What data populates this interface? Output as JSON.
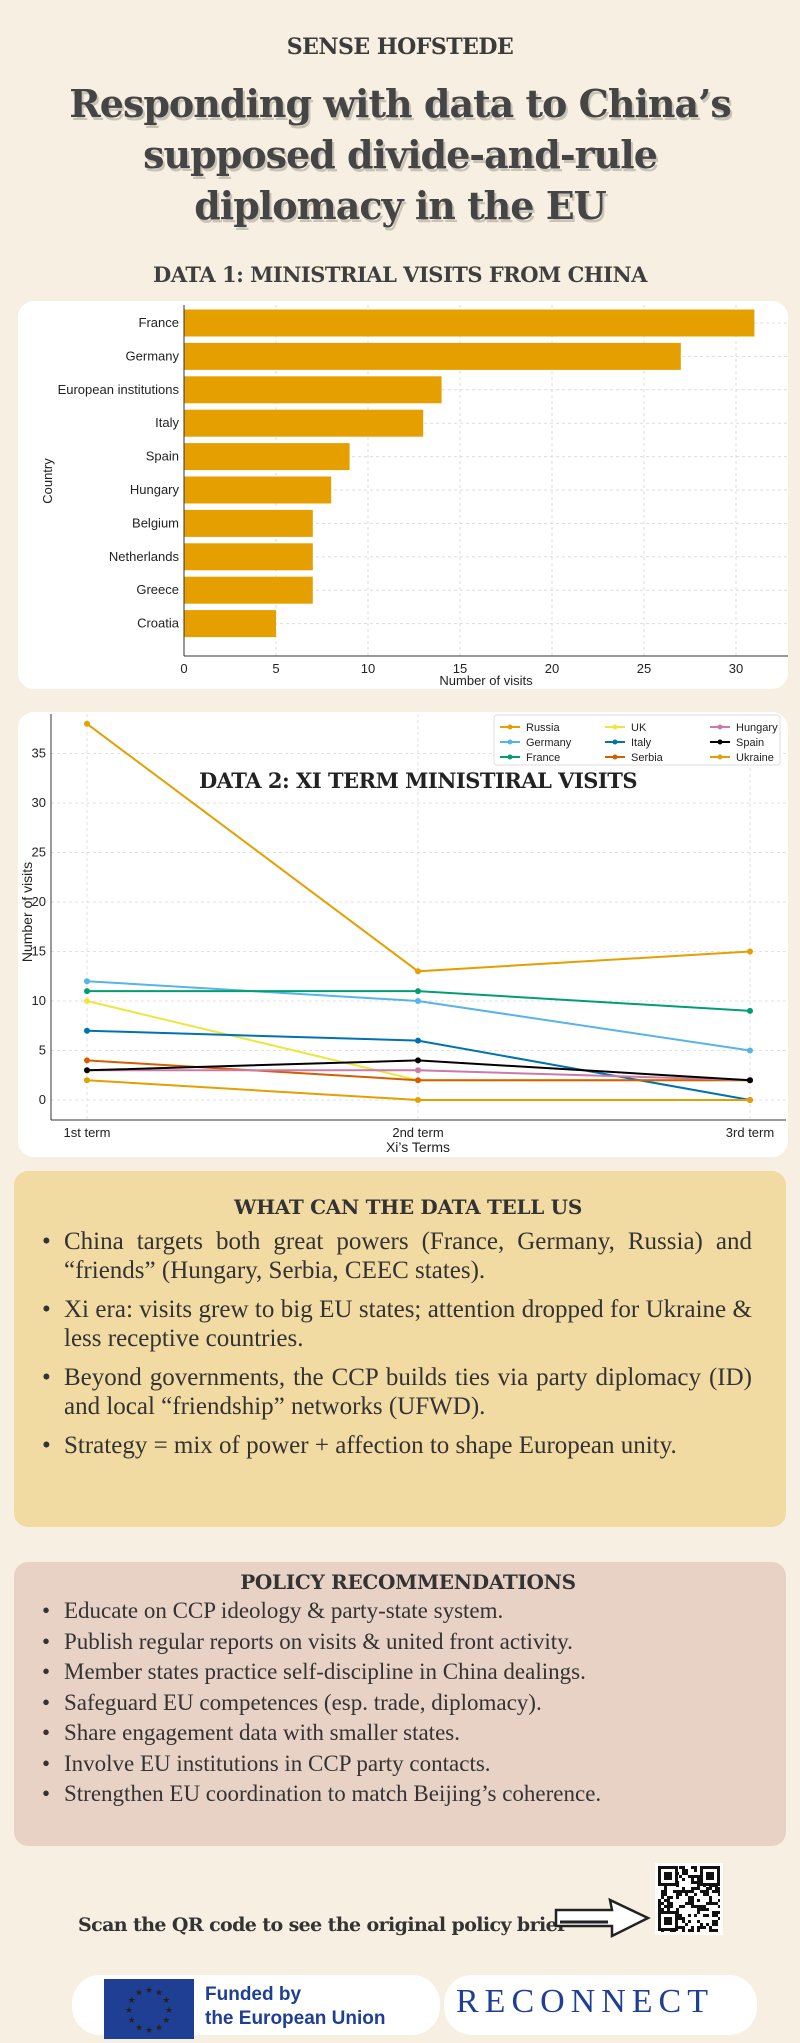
{
  "header": {
    "org": "SENSE HOFSTEDE",
    "title": "Responding with data to China’s supposed divide-and-rule diplomacy in the EU",
    "data1_heading": "DATA 1: MINISTRIAL VISITS FROM CHINA"
  },
  "chart_data": [
    {
      "type": "bar",
      "orientation": "horizontal",
      "title": "DATA 1: MINISTRIAL VISITS FROM CHINA",
      "categories": [
        "France",
        "Germany",
        "European institutions",
        "Italy",
        "Spain",
        "Hungary",
        "Belgium",
        "Netherlands",
        "Greece",
        "Croatia"
      ],
      "values": [
        31,
        27,
        14,
        13,
        9,
        8,
        7,
        7,
        7,
        5
      ],
      "xlabel": "Number of visits",
      "ylabel": "Country",
      "xticks": [
        0,
        5,
        10,
        15,
        20,
        25,
        30
      ],
      "xlim": [
        0,
        32.5
      ],
      "grid": true,
      "color": "#e5a000"
    },
    {
      "type": "line",
      "title": "DATA 2: XI TERM MINISTIRAL VISITS",
      "categories": [
        "1st term",
        "2nd term",
        "3rd term"
      ],
      "xlabel": "Xi’s Terms",
      "ylabel": "Number of visits",
      "yticks": [
        0,
        5,
        10,
        15,
        20,
        25,
        30,
        35
      ],
      "ylim": [
        -1.9,
        39.5
      ],
      "grid": true,
      "legend": "top-right",
      "series": [
        {
          "name": "Russia",
          "values": [
            38,
            13,
            15
          ],
          "color": "#e69f00"
        },
        {
          "name": "Germany",
          "values": [
            12,
            10,
            5
          ],
          "color": "#56b4e9"
        },
        {
          "name": "France",
          "values": [
            11,
            11,
            9
          ],
          "color": "#009e73"
        },
        {
          "name": "UK",
          "values": [
            10,
            2,
            2
          ],
          "color": "#f0e442"
        },
        {
          "name": "Italy",
          "values": [
            7,
            6,
            0
          ],
          "color": "#0072b2"
        },
        {
          "name": "Serbia",
          "values": [
            4,
            2,
            2
          ],
          "color": "#d55e00"
        },
        {
          "name": "Hungary",
          "values": [
            3,
            3,
            2
          ],
          "color": "#cc79a7"
        },
        {
          "name": "Spain",
          "values": [
            3,
            4,
            2
          ],
          "color": "#000000"
        },
        {
          "name": "Ukraine",
          "values": [
            2,
            0,
            0
          ],
          "color": "#e69f00"
        }
      ]
    }
  ],
  "tell": {
    "heading": "WHAT CAN THE DATA TELL US",
    "items": [
      "China targets both great powers (France, Germany, Russia) and “friends” (Hungary, Serbia, CEEC states).",
      "Xi era: visits grew to big EU states; attention dropped for Ukraine & less receptive countries.",
      "Beyond governments, the CCP builds ties via party diplomacy (ID) and local “friendship” networks (UFWD).",
      "Strategy = mix of power + affection to shape European unity."
    ]
  },
  "policy": {
    "heading": "POLICY RECOMMENDATIONS",
    "items": [
      "Educate on CCP ideology & party-state system.",
      "Publish regular reports on visits & united front activity.",
      "Member states practice self-discipline in China dealings.",
      "Safeguard EU competences (esp. trade, diplomacy).",
      "Share engagement data with smaller states.",
      "Involve EU institutions in CCP party contacts.",
      "Strengthen EU coordination to match Beijing’s coherence."
    ]
  },
  "footer": {
    "qr_text": "Scan the QR code to see the original policy brief",
    "eu_line1": "Funded by",
    "eu_line2": "the European Union",
    "reconnect": "RECONNECT"
  }
}
